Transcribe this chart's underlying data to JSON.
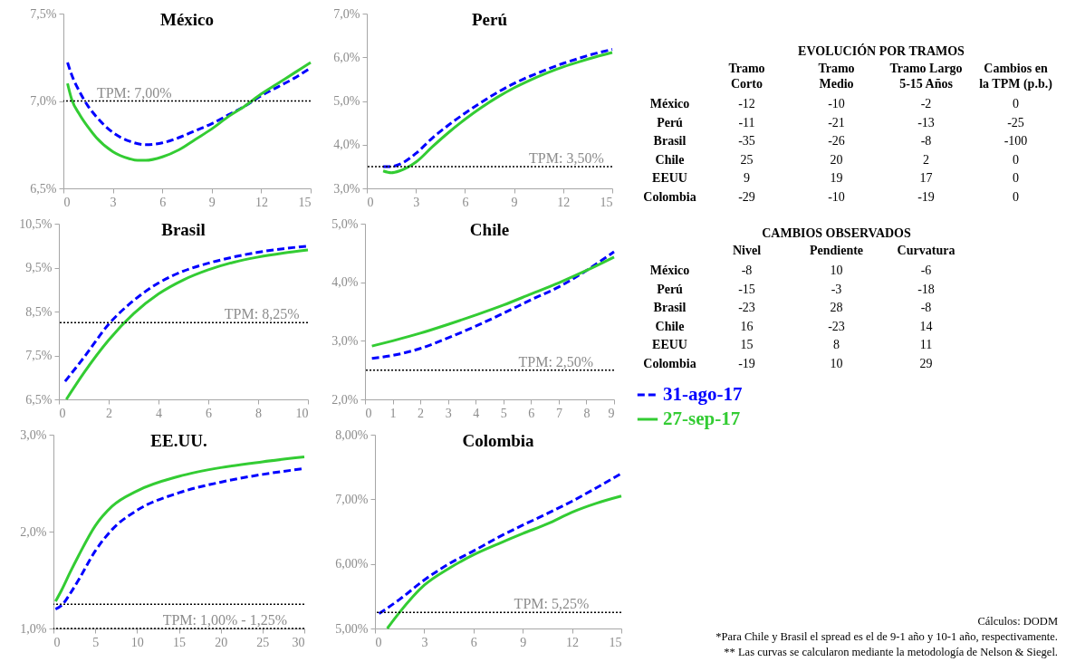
{
  "chart_data": [
    {
      "type": "line",
      "title": "México",
      "xlim": [
        0,
        15
      ],
      "xticks": [
        0,
        3,
        6,
        9,
        12,
        15
      ],
      "ylim": [
        6.5,
        7.5
      ],
      "yticks": [
        {
          "value": 6.5,
          "label": "6,5%"
        },
        {
          "value": 7.0,
          "label": "7,0%"
        },
        {
          "value": 7.5,
          "label": "7,5%"
        }
      ],
      "legend": "right",
      "series": [
        {
          "name": "31-ago-17",
          "color": "#0000ff",
          "line_style": "dashed",
          "x": [
            0.25,
            0.5,
            1,
            1.5,
            2,
            3,
            4,
            5,
            6,
            7,
            8,
            9,
            10,
            11,
            12,
            13,
            14,
            15
          ],
          "values": [
            7.22,
            7.15,
            7.05,
            6.97,
            6.91,
            6.82,
            6.77,
            6.75,
            6.76,
            6.79,
            6.83,
            6.87,
            6.92,
            6.97,
            7.03,
            7.08,
            7.13,
            7.19
          ]
        },
        {
          "name": "27-sep-17",
          "color": "#33cc33",
          "line_style": "solid",
          "x": [
            0.25,
            0.5,
            1,
            1.5,
            2,
            3,
            4,
            4.5,
            5,
            6,
            7,
            8,
            9,
            10,
            11,
            12,
            13,
            14,
            15
          ],
          "values": [
            7.1,
            7.01,
            6.92,
            6.85,
            6.79,
            6.71,
            6.67,
            6.66,
            6.66,
            6.68,
            6.72,
            6.78,
            6.84,
            6.91,
            6.97,
            7.04,
            7.1,
            7.16,
            7.22
          ]
        }
      ],
      "ref_lines": [
        {
          "axis": "y",
          "value": 7.0,
          "color": "#000000",
          "line_style": "dotted"
        }
      ],
      "annotations": [
        {
          "text": "TPM: 7,00%",
          "x": 4.3,
          "y": 7.0
        }
      ]
    },
    {
      "type": "line",
      "title": "Perú",
      "xlim": [
        0,
        15
      ],
      "xticks": [
        0,
        3,
        6,
        9,
        12,
        15
      ],
      "ylim": [
        3.0,
        7.0
      ],
      "yticks": [
        {
          "value": 3.0,
          "label": "3,0%"
        },
        {
          "value": 4.0,
          "label": "4,0%"
        },
        {
          "value": 5.0,
          "label": "5,0%"
        },
        {
          "value": 6.0,
          "label": "6,0%"
        },
        {
          "value": 7.0,
          "label": "7,0%"
        }
      ],
      "series": [
        {
          "color": "#0000ff",
          "line_style": "dashed",
          "x": [
            1,
            1.5,
            2,
            3,
            4,
            5,
            6,
            7,
            8,
            9,
            10,
            11,
            12,
            13,
            14,
            15
          ],
          "values": [
            3.5,
            3.5,
            3.55,
            3.8,
            4.15,
            4.45,
            4.72,
            4.97,
            5.2,
            5.4,
            5.57,
            5.72,
            5.86,
            5.98,
            6.09,
            6.18
          ]
        },
        {
          "color": "#33cc33",
          "line_style": "solid",
          "x": [
            1,
            1.5,
            2,
            3,
            4,
            5,
            6,
            7,
            8,
            9,
            10,
            11,
            12,
            13,
            14,
            15
          ],
          "values": [
            3.4,
            3.36,
            3.4,
            3.6,
            3.95,
            4.28,
            4.58,
            4.85,
            5.09,
            5.3,
            5.48,
            5.64,
            5.78,
            5.9,
            6.01,
            6.11
          ]
        }
      ],
      "ref_lines": [
        {
          "axis": "y",
          "value": 3.5,
          "color": "#000000",
          "line_style": "dotted"
        }
      ],
      "annotations": [
        {
          "text": "TPM: 3,50%",
          "x": 12.2,
          "y": 3.5
        }
      ]
    },
    {
      "type": "line",
      "title": "Brasil",
      "xlim": [
        0,
        10
      ],
      "xticks": [
        0,
        2,
        4,
        6,
        8,
        10
      ],
      "ylim": [
        6.5,
        10.5
      ],
      "yticks": [
        {
          "value": 6.5,
          "label": "6,5%"
        },
        {
          "value": 7.5,
          "label": "7,5%"
        },
        {
          "value": 8.5,
          "label": "8,5%"
        },
        {
          "value": 9.5,
          "label": "9,5%"
        },
        {
          "value": 10.5,
          "label": "10,5%"
        }
      ],
      "series": [
        {
          "color": "#0000ff",
          "line_style": "dashed",
          "x": [
            0.25,
            1,
            2,
            3,
            4,
            5,
            6,
            7,
            8,
            9,
            10
          ],
          "values": [
            6.91,
            7.45,
            8.21,
            8.75,
            9.15,
            9.42,
            9.6,
            9.74,
            9.85,
            9.93,
            9.99
          ]
        },
        {
          "color": "#33cc33",
          "line_style": "solid",
          "x": [
            0.3,
            1,
            2,
            3,
            4,
            5,
            6,
            7,
            8,
            9,
            10
          ],
          "values": [
            6.5,
            7.1,
            7.85,
            8.45,
            8.9,
            9.22,
            9.45,
            9.62,
            9.74,
            9.83,
            9.9
          ]
        }
      ],
      "ref_lines": [
        {
          "axis": "y",
          "value": 8.25,
          "color": "#000000",
          "line_style": "dotted"
        }
      ],
      "annotations": [
        {
          "text": "TPM: 8,25%",
          "x": 8.15,
          "y": 8.25
        }
      ]
    },
    {
      "type": "line",
      "title": "Chile",
      "xlim": [
        0,
        9
      ],
      "xticks": [
        0,
        1,
        2,
        3,
        4,
        5,
        6,
        7,
        8,
        9
      ],
      "ylim": [
        2.0,
        5.0
      ],
      "yticks": [
        {
          "value": 2.0,
          "label": "2,0%"
        },
        {
          "value": 3.0,
          "label": "3,0%"
        },
        {
          "value": 4.0,
          "label": "4,0%"
        },
        {
          "value": 5.0,
          "label": "5,0%"
        }
      ],
      "series": [
        {
          "color": "#0000ff",
          "line_style": "dashed",
          "x": [
            0.25,
            1,
            2,
            3,
            4,
            5,
            6,
            7,
            8,
            9
          ],
          "values": [
            2.7,
            2.75,
            2.87,
            3.05,
            3.25,
            3.47,
            3.7,
            3.92,
            4.2,
            4.52
          ]
        },
        {
          "color": "#33cc33",
          "line_style": "solid",
          "x": [
            0.25,
            1,
            2,
            3,
            4,
            5,
            6,
            7,
            8,
            9
          ],
          "values": [
            2.91,
            3.0,
            3.13,
            3.28,
            3.44,
            3.61,
            3.8,
            3.99,
            4.2,
            4.43
          ]
        }
      ],
      "ref_lines": [
        {
          "axis": "y",
          "value": 2.5,
          "color": "#000000",
          "line_style": "dotted"
        }
      ],
      "annotations": [
        {
          "text": "TPM: 2,50%",
          "x": 6.9,
          "y": 2.5
        }
      ]
    },
    {
      "type": "line",
      "title": "EE.UU.",
      "xlim": [
        0,
        30
      ],
      "xticks": [
        0,
        5,
        10,
        15,
        20,
        25,
        30
      ],
      "ylim": [
        1.0,
        3.0
      ],
      "yticks": [
        {
          "value": 1.0,
          "label": "1,0%"
        },
        {
          "value": 2.0,
          "label": "2,0%"
        },
        {
          "value": 3.0,
          "label": "3,0%"
        }
      ],
      "series": [
        {
          "color": "#0000ff",
          "line_style": "dashed",
          "x": [
            0.25,
            1,
            2,
            3,
            5,
            7,
            10,
            15,
            20,
            25,
            30
          ],
          "values": [
            1.2,
            1.24,
            1.36,
            1.5,
            1.8,
            2.02,
            2.22,
            2.4,
            2.51,
            2.59,
            2.65
          ]
        },
        {
          "color": "#33cc33",
          "line_style": "solid",
          "x": [
            0.25,
            1,
            2,
            3,
            5,
            7,
            10,
            15,
            20,
            25,
            30
          ],
          "values": [
            1.28,
            1.4,
            1.58,
            1.75,
            2.06,
            2.26,
            2.42,
            2.57,
            2.66,
            2.72,
            2.77
          ]
        }
      ],
      "ref_lines": [
        {
          "axis": "y",
          "value": 1.25,
          "color": "#000000",
          "line_style": "dotted"
        },
        {
          "axis": "y",
          "value": 1.0,
          "color": "#000000",
          "line_style": "dotted"
        }
      ],
      "annotations": [
        {
          "text": "TPM: 1,00% - 1,25%",
          "x": 20.5,
          "y": 1.0
        }
      ]
    },
    {
      "type": "line",
      "title": "Colombia",
      "xlim": [
        0,
        15
      ],
      "xticks": [
        0,
        3,
        6,
        9,
        12,
        15
      ],
      "ylim": [
        5.0,
        8.0
      ],
      "yticks": [
        {
          "value": 5.0,
          "label": "5,00%"
        },
        {
          "value": 6.0,
          "label": "6,00%"
        },
        {
          "value": 7.0,
          "label": "7,00%"
        },
        {
          "value": 8.0,
          "label": "8,00%"
        }
      ],
      "series": [
        {
          "color": "#0000ff",
          "line_style": "dashed",
          "x": [
            0.25,
            1.5,
            3,
            4.5,
            6,
            7.5,
            9,
            10.5,
            12,
            13.5,
            15
          ],
          "values": [
            5.23,
            5.45,
            5.75,
            6.0,
            6.2,
            6.41,
            6.6,
            6.78,
            6.97,
            7.18,
            7.4
          ]
        },
        {
          "color": "#33cc33",
          "line_style": "solid",
          "x": [
            0.75,
            1.5,
            3,
            4.5,
            6,
            7.5,
            9,
            10.5,
            12,
            13.5,
            15
          ],
          "values": [
            5.0,
            5.25,
            5.67,
            5.93,
            6.14,
            6.31,
            6.47,
            6.62,
            6.8,
            6.94,
            7.05
          ]
        }
      ],
      "ref_lines": [
        {
          "axis": "y",
          "value": 5.25,
          "color": "#000000",
          "line_style": "dotted"
        }
      ],
      "annotations": [
        {
          "text": "TPM: 5,25%",
          "x": 10.75,
          "y": 5.25
        }
      ]
    },
    {
      "type": "heatmap",
      "title": "EVOLUCIÓN POR TRAMOS",
      "categories": [
        "Tramo Corto",
        "Tramo Medio",
        "Tramo Largo 5-15 Años",
        "Cambios en la TPM (p.b.)"
      ],
      "y_categories": [
        "México",
        "Perú",
        "Brasil",
        "Chile",
        "EEUU",
        "Colombia"
      ],
      "data_labels": true,
      "cells": [
        [
          -12,
          -10,
          -2,
          0
        ],
        [
          -11,
          -21,
          -13,
          -25
        ],
        [
          -35,
          -26,
          -8,
          -100
        ],
        [
          25,
          20,
          2,
          0
        ],
        [
          9,
          19,
          17,
          0
        ],
        [
          -29,
          -10,
          -19,
          0
        ]
      ]
    },
    {
      "type": "heatmap",
      "title": "CAMBIOS OBSERVADOS",
      "categories": [
        "Nivel",
        "Pendiente",
        "Curvatura"
      ],
      "y_categories": [
        "México",
        "Perú",
        "Brasil",
        "Chile",
        "EEUU",
        "Colombia"
      ],
      "data_labels": true,
      "cells": [
        [
          -8,
          10,
          -6
        ],
        [
          -15,
          -3,
          -18
        ],
        [
          -23,
          28,
          -8
        ],
        [
          16,
          -23,
          14
        ],
        [
          15,
          8,
          11
        ],
        [
          -19,
          10,
          29
        ]
      ],
      "annotations": [
        "Cálculos: DODM",
        "*Para Chile y Brasil el spread es el de 9-1 año y 10-1 año, respectivamente.",
        "** Las curvas se calcularon mediante la metodología de Nelson & Siegel."
      ]
    }
  ]
}
